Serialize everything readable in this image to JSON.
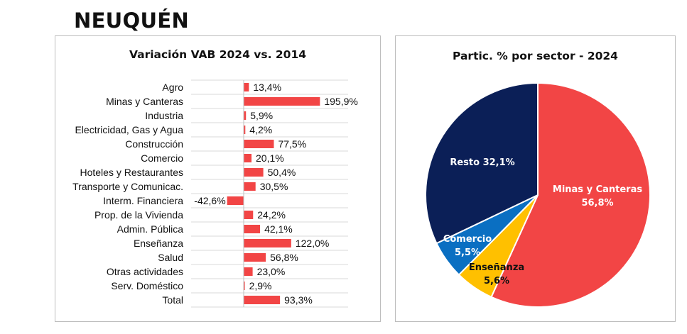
{
  "page": {
    "title": "NEUQUÉN"
  },
  "colors": {
    "bar": "#f24545",
    "grid": "#d9d9d9",
    "axis": "#bfbfbf"
  },
  "chart_data": [
    {
      "type": "bar",
      "orientation": "horizontal",
      "title": "Variación VAB 2024 vs. 2014",
      "unit": "%",
      "grid": true,
      "xlim": [
        -50,
        210
      ],
      "categories": [
        "Agro",
        "Minas y Canteras",
        "Industria",
        "Electricidad, Gas y Agua",
        "Construcción",
        "Comercio",
        "Hoteles y Restaurantes",
        "Transporte y Comunicac.",
        "Interm. Financiera",
        "Prop. de la Vivienda",
        "Admin. Pública",
        "Enseñanza",
        "Salud",
        "Otras actividades",
        "Serv. Doméstico",
        "Total"
      ],
      "values": [
        13.4,
        195.9,
        5.9,
        4.2,
        77.5,
        20.1,
        50.4,
        30.5,
        -42.6,
        24.2,
        42.1,
        122.0,
        56.8,
        23.0,
        2.9,
        93.3
      ],
      "value_labels": [
        "13,4%",
        "195,9%",
        "5,9%",
        "4,2%",
        "77,5%",
        "20,1%",
        "50,4%",
        "30,5%",
        "-42,6%",
        "24,2%",
        "42,1%",
        "122,0%",
        "56,8%",
        "23,0%",
        "2,9%",
        "93,3%"
      ]
    },
    {
      "type": "pie",
      "title": "Partic. % por sector - 2024",
      "unit": "%",
      "slices": [
        {
          "name": "Minas y Canteras",
          "value": 56.8,
          "label": "56,8%",
          "color": "#f24545",
          "text_color": "#ffffff"
        },
        {
          "name": "Enseñanza",
          "value": 5.6,
          "label": "5,6%",
          "color": "#ffc000",
          "text_color": "#111111"
        },
        {
          "name": "Comercio",
          "value": 5.5,
          "label": "5,5%",
          "color": "#0a6fc2",
          "text_color": "#ffffff"
        },
        {
          "name": "Resto",
          "value": 32.1,
          "label": "32,1%",
          "color": "#0b1f57",
          "text_color": "#ffffff"
        }
      ]
    }
  ]
}
